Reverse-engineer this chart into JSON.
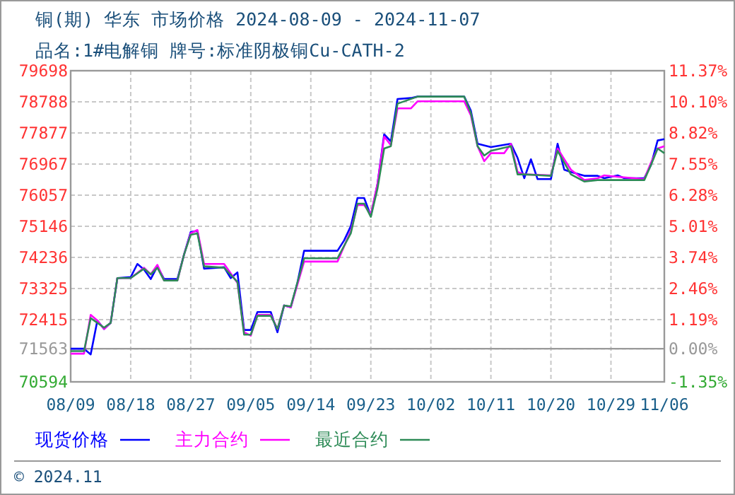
{
  "chart_data": {
    "type": "line",
    "title": "铜(期) 华东 市场价格 2024-08-09 - 2024-11-07",
    "subtitle": "品名:1#电解铜 牌号:标准阴极铜Cu-CATH-2",
    "annotations": [
      "© 2024.11"
    ],
    "xlim": [
      "2024-08-09",
      "2024-11-06"
    ],
    "xticks": [
      {
        "value": "2024-08-09",
        "label": "08/09"
      },
      {
        "value": "2024-08-18",
        "label": "08/18"
      },
      {
        "value": "2024-08-27",
        "label": "08/27"
      },
      {
        "value": "2024-09-05",
        "label": "09/05"
      },
      {
        "value": "2024-09-14",
        "label": "09/14"
      },
      {
        "value": "2024-09-23",
        "label": "09/23"
      },
      {
        "value": "2024-10-02",
        "label": "10/02"
      },
      {
        "value": "2024-10-11",
        "label": "10/11"
      },
      {
        "value": "2024-10-20",
        "label": "10/20"
      },
      {
        "value": "2024-10-29",
        "label": "10/29"
      },
      {
        "value": "2024-11-06",
        "label": "11/06"
      }
    ],
    "ylim": [
      70594,
      79698
    ],
    "yticks": [
      79698,
      78788,
      77877,
      76967,
      76057,
      75146,
      74236,
      73325,
      72415,
      71563,
      70594
    ],
    "y2lim": [
      -1.35,
      11.37
    ],
    "y2ticks": [
      {
        "value": 11.37,
        "label": "11.37%"
      },
      {
        "value": 10.1,
        "label": "10.10%"
      },
      {
        "value": 8.82,
        "label": "8.82%"
      },
      {
        "value": 7.55,
        "label": "7.55%"
      },
      {
        "value": 6.28,
        "label": "6.28%"
      },
      {
        "value": 5.01,
        "label": "5.01%"
      },
      {
        "value": 3.74,
        "label": "3.74%"
      },
      {
        "value": 2.46,
        "label": "2.46%"
      },
      {
        "value": 1.19,
        "label": "1.19%"
      },
      {
        "value": 0,
        "label": "0.00%"
      },
      {
        "value": -1.35,
        "label": "-1.35%"
      }
    ],
    "ref_lines": [
      {
        "axis": "y",
        "value": 71563,
        "color": "#999999"
      }
    ],
    "grid": true,
    "legend": "bottom",
    "line_style": "solid",
    "series": [
      {
        "name": "现货价格",
        "color": "#0000ff",
        "x": [
          "2024-08-09",
          "2024-08-11",
          "2024-08-12",
          "2024-08-13",
          "2024-08-14",
          "2024-08-15",
          "2024-08-16",
          "2024-08-18",
          "2024-08-19",
          "2024-08-20",
          "2024-08-21",
          "2024-08-22",
          "2024-08-23",
          "2024-08-25",
          "2024-08-26",
          "2024-08-27",
          "2024-08-28",
          "2024-08-29",
          "2024-09-01",
          "2024-09-02",
          "2024-09-03",
          "2024-09-04",
          "2024-09-05",
          "2024-09-06",
          "2024-09-08",
          "2024-09-09",
          "2024-09-10",
          "2024-09-11",
          "2024-09-12",
          "2024-09-13",
          "2024-09-18",
          "2024-09-19",
          "2024-09-20",
          "2024-09-21",
          "2024-09-22",
          "2024-09-23",
          "2024-09-24",
          "2024-09-25",
          "2024-09-26",
          "2024-09-27",
          "2024-09-29",
          "2024-09-30",
          "2024-10-07",
          "2024-10-08",
          "2024-10-09",
          "2024-10-11",
          "2024-10-14",
          "2024-10-15",
          "2024-10-16",
          "2024-10-17",
          "2024-10-18",
          "2024-10-20",
          "2024-10-21",
          "2024-10-22",
          "2024-10-23",
          "2024-10-25",
          "2024-10-27",
          "2024-10-28",
          "2024-10-30",
          "2024-10-31",
          "2024-11-03",
          "2024-11-04",
          "2024-11-05",
          "2024-11-06"
        ],
        "values": [
          71563,
          71563,
          71397,
          72389,
          72141,
          72320,
          73630,
          73658,
          74044,
          73878,
          73603,
          73975,
          73603,
          73603,
          74320,
          74982,
          75010,
          73906,
          73948,
          73630,
          73796,
          72113,
          72113,
          72637,
          72637,
          72045,
          72830,
          72775,
          73500,
          74430,
          74430,
          74734,
          75148,
          75975,
          75975,
          75451,
          76388,
          77836,
          77629,
          78870,
          78898,
          78940,
          78940,
          78526,
          77560,
          77464,
          77560,
          77147,
          76554,
          77106,
          76526,
          76526,
          77560,
          76802,
          76733,
          76623,
          76623,
          76554,
          76637,
          76554,
          76554,
          76940,
          77657,
          77698
        ]
      },
      {
        "name": "主力合约",
        "color": "#ff00ff",
        "x": [
          "2024-08-09",
          "2024-08-11",
          "2024-08-12",
          "2024-08-13",
          "2024-08-14",
          "2024-08-15",
          "2024-08-16",
          "2024-08-18",
          "2024-08-20",
          "2024-08-21",
          "2024-08-22",
          "2024-08-23",
          "2024-08-25",
          "2024-08-26",
          "2024-08-27",
          "2024-08-28",
          "2024-08-29",
          "2024-09-01",
          "2024-09-03",
          "2024-09-04",
          "2024-09-05",
          "2024-09-06",
          "2024-09-08",
          "2024-09-09",
          "2024-09-10",
          "2024-09-11",
          "2024-09-13",
          "2024-09-18",
          "2024-09-20",
          "2024-09-21",
          "2024-09-22",
          "2024-09-23",
          "2024-09-24",
          "2024-09-25",
          "2024-09-26",
          "2024-09-27",
          "2024-09-29",
          "2024-09-30",
          "2024-10-07",
          "2024-10-08",
          "2024-10-09",
          "2024-10-10",
          "2024-10-11",
          "2024-10-13",
          "2024-10-14",
          "2024-10-15",
          "2024-10-16",
          "2024-10-20",
          "2024-10-21",
          "2024-10-22",
          "2024-10-23",
          "2024-10-25",
          "2024-10-27",
          "2024-10-28",
          "2024-10-30",
          "2024-11-03",
          "2024-11-04",
          "2024-11-05",
          "2024-11-06"
        ],
        "values": [
          71420,
          71420,
          72555,
          72389,
          72141,
          72320,
          73630,
          73630,
          73934,
          73740,
          74017,
          73561,
          73561,
          74320,
          74941,
          75037,
          74044,
          74044,
          73492,
          72045,
          71947,
          72555,
          72555,
          72141,
          72830,
          72775,
          74113,
          74113,
          75010,
          75768,
          75768,
          75492,
          76388,
          77767,
          77519,
          78595,
          78595,
          78802,
          78802,
          78388,
          77491,
          77050,
          77285,
          77285,
          77560,
          76733,
          76664,
          76637,
          77422,
          77106,
          76802,
          76499,
          76554,
          76637,
          76595,
          76526,
          77009,
          77422,
          77491
        ]
      },
      {
        "name": "最近合约",
        "color": "#2e8b57",
        "x": [
          "2024-08-09",
          "2024-08-11",
          "2024-08-12",
          "2024-08-14",
          "2024-08-15",
          "2024-08-16",
          "2024-08-18",
          "2024-08-20",
          "2024-08-21",
          "2024-08-22",
          "2024-08-23",
          "2024-08-25",
          "2024-08-26",
          "2024-08-27",
          "2024-08-28",
          "2024-08-29",
          "2024-09-01",
          "2024-09-03",
          "2024-09-04",
          "2024-09-05",
          "2024-09-06",
          "2024-09-08",
          "2024-09-09",
          "2024-09-10",
          "2024-09-11",
          "2024-09-13",
          "2024-09-18",
          "2024-09-20",
          "2024-09-21",
          "2024-09-22",
          "2024-09-23",
          "2024-09-24",
          "2024-09-25",
          "2024-09-26",
          "2024-09-27",
          "2024-09-30",
          "2024-10-07",
          "2024-10-08",
          "2024-10-09",
          "2024-10-10",
          "2024-10-11",
          "2024-10-14",
          "2024-10-15",
          "2024-10-16",
          "2024-10-20",
          "2024-10-21",
          "2024-10-23",
          "2024-10-25",
          "2024-10-27",
          "2024-10-30",
          "2024-11-03",
          "2024-11-04",
          "2024-11-05",
          "2024-11-06"
        ],
        "values": [
          71493,
          71493,
          72458,
          72182,
          72320,
          73630,
          73630,
          73906,
          73740,
          73934,
          73561,
          73561,
          74320,
          74899,
          74941,
          73975,
          73934,
          73520,
          71975,
          71975,
          72527,
          72527,
          72141,
          72830,
          72803,
          74210,
          74210,
          74941,
          75809,
          75809,
          75423,
          76250,
          77422,
          77491,
          78733,
          78940,
          78940,
          78457,
          77491,
          77216,
          77354,
          77491,
          76664,
          76664,
          76623,
          77354,
          76664,
          76457,
          76499,
          76499,
          76499,
          76940,
          77422,
          77285
        ]
      }
    ]
  }
}
